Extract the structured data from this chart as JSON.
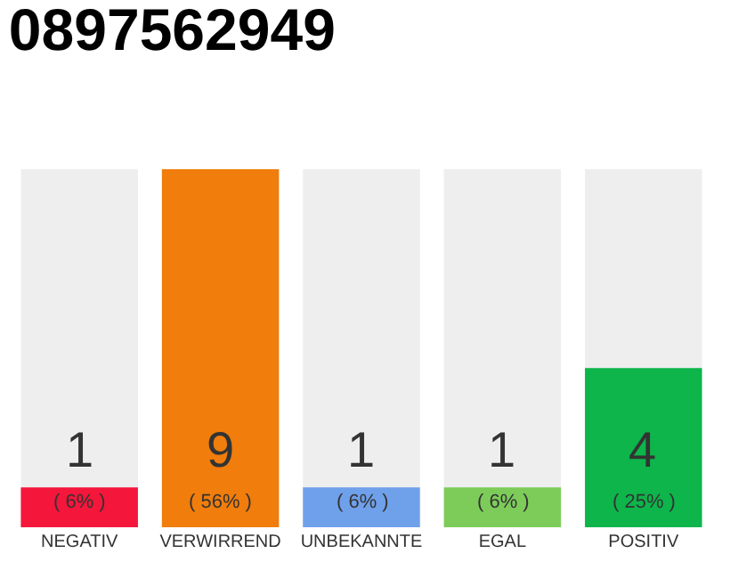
{
  "chart_data": {
    "type": "bar",
    "title": "0897562949",
    "categories": [
      "NEGATIV",
      "VERWIRREND",
      "UNBEKANNTE",
      "EGAL",
      "POSITIV"
    ],
    "values": [
      1,
      9,
      1,
      1,
      4
    ],
    "colors": [
      "#f5163b",
      "#f07d0c",
      "#6fa0ea",
      "#7dcc5a",
      "#0db54a"
    ],
    "value_labels": [
      "1\n( 6% )",
      "9\n( 56% )",
      "1\n( 6% )",
      "1\n( 6% )",
      "4\n( 25% )"
    ]
  }
}
